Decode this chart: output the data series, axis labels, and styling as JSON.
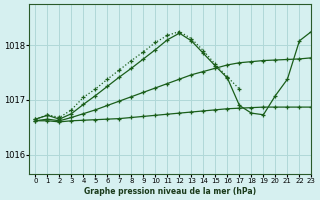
{
  "title": "Graphe pression niveau de la mer (hPa)",
  "bg_color": "#d6f0f0",
  "grid_color": "#b0d8d8",
  "line_color": "#1a5e1a",
  "xlim": [
    -0.5,
    23
  ],
  "ylim": [
    1015.65,
    1018.75
  ],
  "yticks": [
    1016,
    1017,
    1018
  ],
  "xticks": [
    0,
    1,
    2,
    3,
    4,
    5,
    6,
    7,
    8,
    9,
    10,
    11,
    12,
    13,
    14,
    15,
    16,
    17,
    18,
    19,
    20,
    21,
    22,
    23
  ],
  "series": [
    {
      "x": [
        0,
        1,
        2,
        3,
        4,
        5,
        6,
        7,
        8,
        9,
        10,
        11,
        12,
        13,
        14,
        15,
        16,
        17,
        18,
        19,
        20,
        21,
        22,
        23
      ],
      "y": [
        1016.62,
        1016.62,
        1016.6,
        1016.62,
        1016.63,
        1016.64,
        1016.65,
        1016.66,
        1016.68,
        1016.7,
        1016.72,
        1016.74,
        1016.76,
        1016.78,
        1016.8,
        1016.82,
        1016.84,
        1016.85,
        1016.86,
        1016.87,
        1016.87,
        1016.87,
        1016.87,
        1016.87
      ],
      "linestyle": "-",
      "marker": "+"
    },
    {
      "x": [
        0,
        1,
        2,
        3,
        4,
        5,
        6,
        7,
        8,
        9,
        10,
        11,
        12,
        13,
        14,
        15,
        16,
        17,
        18,
        19,
        20,
        21,
        22,
        23
      ],
      "y": [
        1016.62,
        1016.65,
        1016.62,
        1016.68,
        1016.75,
        1016.82,
        1016.9,
        1016.98,
        1017.06,
        1017.14,
        1017.22,
        1017.3,
        1017.38,
        1017.46,
        1017.52,
        1017.58,
        1017.64,
        1017.68,
        1017.7,
        1017.72,
        1017.73,
        1017.74,
        1017.75,
        1017.77
      ],
      "linestyle": "-",
      "marker": "+"
    },
    {
      "x": [
        0,
        1,
        2,
        3,
        4,
        5,
        6,
        7,
        8,
        9,
        10,
        11,
        12,
        13,
        14,
        15,
        16,
        17,
        18,
        19,
        20,
        21,
        22,
        23
      ],
      "y": [
        1016.65,
        1016.72,
        1016.65,
        1016.75,
        1016.92,
        1017.08,
        1017.25,
        1017.42,
        1017.58,
        1017.75,
        1017.92,
        1018.1,
        1018.22,
        1018.08,
        1017.85,
        1017.62,
        1017.4,
        1016.9,
        1016.76,
        1016.73,
        1017.08,
        1017.38,
        1018.08,
        1018.25
      ],
      "linestyle": "-",
      "marker": "+"
    },
    {
      "x": [
        0,
        1,
        2,
        3,
        4,
        5,
        6,
        7,
        8,
        9,
        10,
        11,
        12,
        13,
        14,
        15,
        16,
        17
      ],
      "y": [
        1016.65,
        1016.73,
        1016.68,
        1016.82,
        1017.05,
        1017.2,
        1017.38,
        1017.55,
        1017.72,
        1017.88,
        1018.05,
        1018.18,
        1018.25,
        1018.12,
        1017.9,
        1017.65,
        1017.42,
        1017.2
      ],
      "linestyle": ":",
      "marker": "+"
    }
  ]
}
